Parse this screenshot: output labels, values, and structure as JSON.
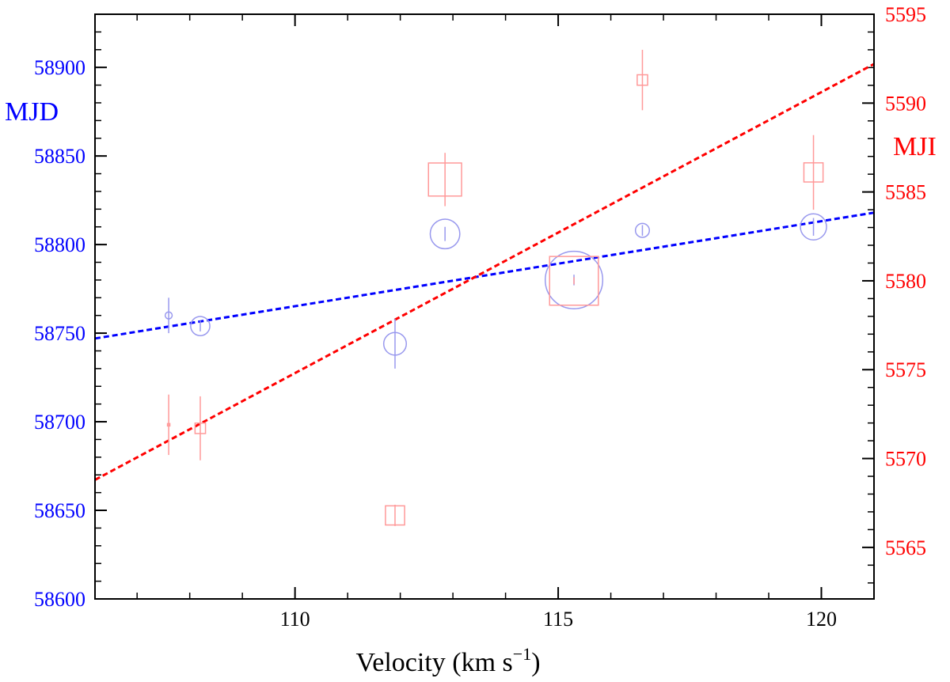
{
  "chart_data": {
    "type": "scatter",
    "title": "",
    "xlabel": "Velocity (km s",
    "xlabel_sup": "−1",
    "xlabel_close": ")",
    "xlim": [
      106.2,
      121.0
    ],
    "x_ticks": [
      110,
      115,
      120
    ],
    "x_minor_step": 1,
    "left_axis": {
      "label": "MJD",
      "color": "#0000ff",
      "ylim": [
        58600,
        58930
      ],
      "ticks": [
        58600,
        58650,
        58700,
        58750,
        58800,
        58850,
        58900
      ],
      "minor_step": 10
    },
    "right_axis": {
      "label": "MJD",
      "label_visible": "MJI",
      "color": "#ff0000",
      "ylim": [
        5562.1,
        5595
      ],
      "ticks": [
        5565,
        5570,
        5575,
        5580,
        5585,
        5590,
        5595
      ],
      "minor_step": 1
    },
    "series": [
      {
        "name": "left-axis points",
        "axis": "left",
        "marker": "circle",
        "color": "#9999ee",
        "points": [
          {
            "x": 107.6,
            "y": 58760,
            "err": 10,
            "size": 0.2
          },
          {
            "x": 108.2,
            "y": 58754,
            "err": 3,
            "size": 0.55
          },
          {
            "x": 111.9,
            "y": 58744,
            "err": 14,
            "size": 0.65
          },
          {
            "x": 112.85,
            "y": 58806,
            "err": 4,
            "size": 0.85
          },
          {
            "x": 115.3,
            "y": 58780,
            "err": 3,
            "size": 1.65
          },
          {
            "x": 116.6,
            "y": 58808,
            "err": 3,
            "size": 0.4
          },
          {
            "x": 119.85,
            "y": 58810,
            "err": 5,
            "size": 0.75
          }
        ]
      },
      {
        "name": "right-axis points",
        "axis": "right",
        "marker": "square",
        "color": "#ff9999",
        "points": [
          {
            "x": 107.6,
            "y": 5571.9,
            "err": 1.7,
            "size": 0.05
          },
          {
            "x": 108.2,
            "y": 5571.7,
            "err": 1.8,
            "size": 0.3
          },
          {
            "x": 111.9,
            "y": 5566.8,
            "err": 0.6,
            "size": 0.55
          },
          {
            "x": 112.85,
            "y": 5585.7,
            "err": 1.5,
            "size": 0.95
          },
          {
            "x": 115.3,
            "y": 5580.0,
            "err": 0.2,
            "size": 1.4
          },
          {
            "x": 116.6,
            "y": 5591.3,
            "err": 1.7,
            "size": 0.3
          },
          {
            "x": 119.85,
            "y": 5586.1,
            "err": 2.1,
            "size": 0.55
          }
        ]
      }
    ],
    "fits": [
      {
        "name": "left-axis linear fit",
        "axis": "left",
        "color": "#0000ff",
        "x0": 106.2,
        "y0": 58747,
        "x1": 121.0,
        "y1": 58818
      },
      {
        "name": "right-axis linear fit",
        "axis": "right",
        "color": "#ff0000",
        "x0": 106.2,
        "y0": 5568.8,
        "x1": 121.0,
        "y1": 5592.2
      }
    ]
  }
}
